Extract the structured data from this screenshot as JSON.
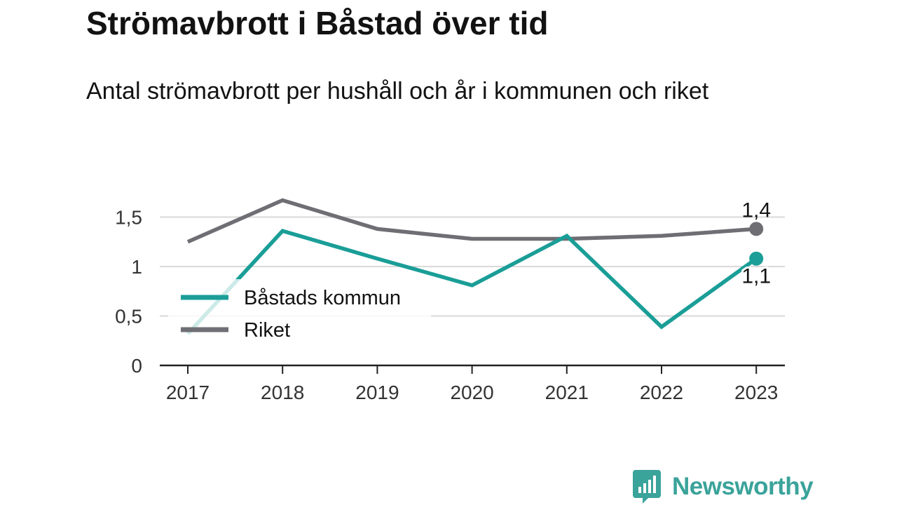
{
  "title": "Strömavbrott i Båstad över tid",
  "subtitle": "Antal strömavbrott per hushåll och år i kommunen och riket",
  "brand": {
    "name": "Newsworthy",
    "logo_icon": "newsworthy-bar-chart-icon"
  },
  "colors": {
    "bastad": "#1a9e97",
    "riket": "#6f6e74",
    "grid": "#d9d9d9",
    "axis": "#222222",
    "brand": "#3aa39a"
  },
  "chart_data": {
    "type": "line",
    "x": [
      "2017",
      "2018",
      "2019",
      "2020",
      "2021",
      "2022",
      "2023"
    ],
    "y_ticks": [
      "0",
      "0,5",
      "1",
      "1,5"
    ],
    "ylim": [
      0,
      1.7
    ],
    "grid": true,
    "legend": "bottom-left inside plot",
    "series": [
      {
        "name": "Båstads kommun",
        "values": [
          0.32,
          1.36,
          1.08,
          0.81,
          1.31,
          0.39,
          1.08
        ],
        "end_label": "1,1"
      },
      {
        "name": "Riket",
        "values": [
          1.25,
          1.67,
          1.38,
          1.28,
          1.28,
          1.31,
          1.38
        ],
        "end_label": "1,4"
      }
    ]
  }
}
